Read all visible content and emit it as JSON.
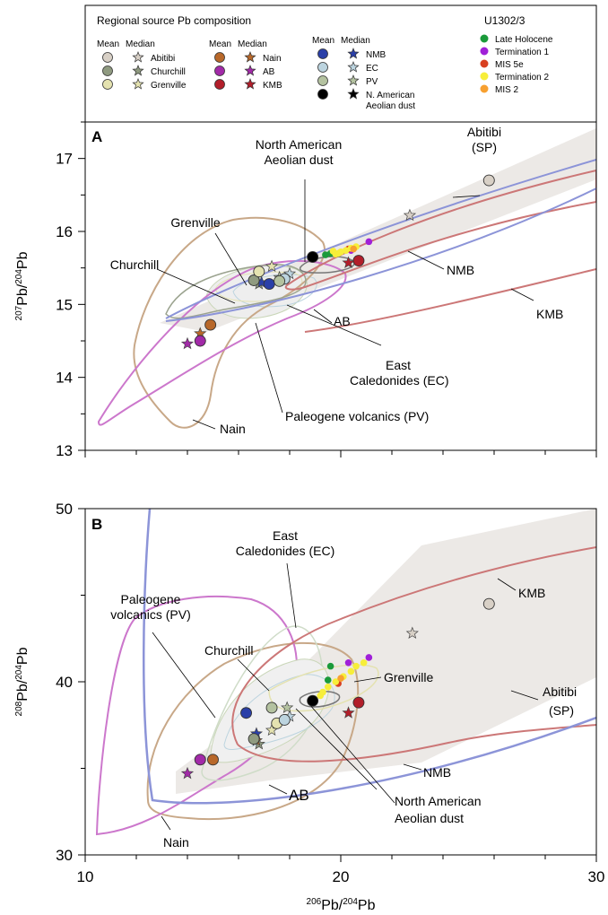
{
  "legend": {
    "title": "Regional source Pb composition",
    "mean_label": "Mean",
    "median_label": "Median",
    "regions": [
      {
        "name": "Abitibi",
        "color": "#d8d0c6"
      },
      {
        "name": "Churchill",
        "color": "#8f9a80"
      },
      {
        "name": "Grenville",
        "color": "#e4e2b0"
      },
      {
        "name": "Nain",
        "color": "#b8682a"
      },
      {
        "name": "AB",
        "color": "#a22aa8"
      },
      {
        "name": "KMB",
        "color": "#b21e2a"
      },
      {
        "name": "NMB",
        "color": "#2a3fa8"
      },
      {
        "name": "EC",
        "color": "#bcd4df"
      },
      {
        "name": "PV",
        "color": "#b4c2a0"
      },
      {
        "name": "N. American Aeolian dust",
        "color": "#000000"
      }
    ],
    "core_title": "U1302/3",
    "core_samples": [
      {
        "name": "Late Holocene",
        "color": "#1a9a3a"
      },
      {
        "name": "Termination 1",
        "color": "#a020d8"
      },
      {
        "name": "MIS 5e",
        "color": "#d84020"
      },
      {
        "name": "Termination 2",
        "color": "#f7ee3a"
      },
      {
        "name": "MIS 2",
        "color": "#f7a030"
      }
    ]
  },
  "chart_data": [
    {
      "panel": "A",
      "type": "scatter",
      "xlabel": "206Pb/204Pb",
      "ylabel": "207Pb/204Pb",
      "xlim": [
        10,
        30
      ],
      "ylim": [
        13,
        17.5
      ],
      "xticks": [
        10,
        20,
        30
      ],
      "yticks": [
        13,
        14,
        15,
        16,
        17
      ],
      "means": [
        {
          "source": "Abitibi",
          "x": 25.8,
          "y": 16.7
        },
        {
          "source": "Churchill",
          "x": 16.6,
          "y": 15.33
        },
        {
          "source": "Grenville",
          "x": 16.8,
          "y": 15.45
        },
        {
          "source": "Nain",
          "x": 14.9,
          "y": 14.72
        },
        {
          "source": "AB",
          "x": 14.5,
          "y": 14.5
        },
        {
          "source": "KMB",
          "x": 20.7,
          "y": 15.6
        },
        {
          "source": "NMB",
          "x": 17.2,
          "y": 15.28
        },
        {
          "source": "EC",
          "x": 17.8,
          "y": 15.35
        },
        {
          "source": "PV",
          "x": 17.6,
          "y": 15.32
        },
        {
          "source": "N. American Aeolian dust",
          "x": 18.9,
          "y": 15.65
        }
      ],
      "medians": [
        {
          "source": "Abitibi",
          "x": 22.7,
          "y": 16.22
        },
        {
          "source": "Churchill",
          "x": 16.8,
          "y": 15.28
        },
        {
          "source": "Grenville",
          "x": 17.3,
          "y": 15.52
        },
        {
          "source": "Nain",
          "x": 14.5,
          "y": 14.6
        },
        {
          "source": "AB",
          "x": 14.0,
          "y": 14.46
        },
        {
          "source": "KMB",
          "x": 20.3,
          "y": 15.57
        },
        {
          "source": "NMB",
          "x": 16.9,
          "y": 15.3
        },
        {
          "source": "EC",
          "x": 18.0,
          "y": 15.42
        },
        {
          "source": "PV",
          "x": 17.6,
          "y": 15.37
        }
      ],
      "samples": [
        {
          "period": "Late Holocene",
          "points": [
            [
              19.6,
              15.7
            ],
            [
              19.4,
              15.68
            ]
          ]
        },
        {
          "period": "Termination 1",
          "points": [
            [
              21.1,
              15.86
            ],
            [
              20.4,
              15.74
            ]
          ]
        },
        {
          "period": "MIS 5e",
          "points": [
            [
              20.3,
              15.76
            ]
          ]
        },
        {
          "period": "Termination 2",
          "points": [
            [
              19.9,
              15.7
            ],
            [
              20.0,
              15.72
            ],
            [
              20.2,
              15.74
            ],
            [
              20.4,
              15.77
            ],
            [
              20.6,
              15.79
            ],
            [
              19.8,
              15.69
            ],
            [
              19.7,
              15.73
            ]
          ]
        },
        {
          "period": "MIS 2",
          "points": [
            [
              20.5,
              15.76
            ]
          ]
        }
      ],
      "annotations": [
        "Abitibi (SP)",
        "North American Aeolian dust",
        "Grenville",
        "Churchill",
        "NMB",
        "KMB",
        "AB",
        "East Caledonides (EC)",
        "Paleogene volcanics (PV)",
        "Nain"
      ]
    },
    {
      "panel": "B",
      "type": "scatter",
      "xlabel": "206Pb/204Pb",
      "ylabel": "208Pb/204Pb",
      "xlim": [
        10,
        30
      ],
      "ylim": [
        30,
        50
      ],
      "xticks": [
        10,
        20,
        30
      ],
      "yticks": [
        30,
        40,
        50
      ],
      "means": [
        {
          "source": "Abitibi",
          "x": 25.8,
          "y": 44.5
        },
        {
          "source": "Churchill",
          "x": 16.6,
          "y": 36.7
        },
        {
          "source": "Grenville",
          "x": 17.5,
          "y": 37.6
        },
        {
          "source": "Nain",
          "x": 15.0,
          "y": 35.5
        },
        {
          "source": "AB",
          "x": 14.5,
          "y": 35.5
        },
        {
          "source": "KMB",
          "x": 20.7,
          "y": 38.8
        },
        {
          "source": "NMB",
          "x": 16.3,
          "y": 38.2
        },
        {
          "source": "EC",
          "x": 17.8,
          "y": 37.8
        },
        {
          "source": "PV",
          "x": 17.3,
          "y": 38.5
        },
        {
          "source": "N. American Aeolian dust",
          "x": 18.9,
          "y": 38.9
        }
      ],
      "medians": [
        {
          "source": "Abitibi",
          "x": 22.8,
          "y": 42.8
        },
        {
          "source": "Churchill",
          "x": 16.8,
          "y": 36.4
        },
        {
          "source": "Grenville",
          "x": 17.3,
          "y": 37.2
        },
        {
          "source": "Nain",
          "x": 16.7,
          "y": 36.6
        },
        {
          "source": "AB",
          "x": 14.0,
          "y": 34.7
        },
        {
          "source": "KMB",
          "x": 20.3,
          "y": 38.2
        },
        {
          "source": "NMB",
          "x": 16.7,
          "y": 37.0
        },
        {
          "source": "EC",
          "x": 18.0,
          "y": 38.0
        },
        {
          "source": "PV",
          "x": 17.9,
          "y": 38.5
        }
      ],
      "samples": [
        {
          "period": "Late Holocene",
          "points": [
            [
              19.6,
              40.9
            ],
            [
              19.5,
              40.1
            ]
          ]
        },
        {
          "period": "Termination 1",
          "points": [
            [
              21.1,
              41.4
            ],
            [
              20.3,
              41.1
            ]
          ]
        },
        {
          "period": "MIS 5e",
          "points": [
            [
              19.9,
              39.9
            ]
          ]
        },
        {
          "period": "Termination 2",
          "points": [
            [
              19.3,
              39.4
            ],
            [
              19.5,
              39.7
            ],
            [
              19.8,
              40.0
            ],
            [
              20.1,
              40.3
            ],
            [
              20.4,
              40.6
            ],
            [
              20.6,
              40.9
            ],
            [
              20.9,
              41.1
            ],
            [
              19.2,
              39.2
            ]
          ]
        },
        {
          "period": "MIS 2",
          "points": [
            [
              20.0,
              40.2
            ]
          ]
        }
      ],
      "annotations": [
        "East Caledonides (EC)",
        "Paleogene volcanics (PV)",
        "KMB",
        "Churchill",
        "Grenville",
        "Abitibi (SP)",
        "NMB",
        "North American Aeolian dust",
        "AB",
        "Nain"
      ]
    }
  ],
  "labels": {
    "panel_a": "A",
    "panel_b": "B",
    "ylabel_a_sup": "207",
    "ylabel_a_main": "Pb/",
    "ylabel_a_sup2": "204",
    "ylabel_a_end": "Pb",
    "ylabel_b_sup": "208",
    "ylabel_b_main": "Pb/",
    "ylabel_b_sup2": "204",
    "ylabel_b_end": "Pb",
    "xlabel_sup": "206",
    "xlabel_main": "Pb/",
    "xlabel_sup2": "204",
    "xlabel_end": "Pb",
    "a_abitibi": "Abitibi",
    "a_sp": "(SP)",
    "a_nad1": "North American",
    "a_nad2": "Aeolian dust",
    "a_grenville": "Grenville",
    "a_churchill": "Churchill",
    "a_nmb": "NMB",
    "a_kmb": "KMB",
    "a_ab": "AB",
    "a_east": "East",
    "a_cal": "Caledonides (EC)",
    "a_pv": "Paleogene volcanics (PV)",
    "a_nain": "Nain",
    "b_east": "East",
    "b_cal": "Caledonides (EC)",
    "b_pal": "Paleogene",
    "b_volc": "volcanics (PV)",
    "b_kmb": "KMB",
    "b_churchill": "Churchill",
    "b_grenville": "Grenville",
    "b_abitibi": "Abitibi",
    "b_sp": "(SP)",
    "b_nmb": "NMB",
    "b_nad1": "North American",
    "b_nad2": "Aeolian dust",
    "b_ab": "AB",
    "b_nain": "Nain"
  }
}
